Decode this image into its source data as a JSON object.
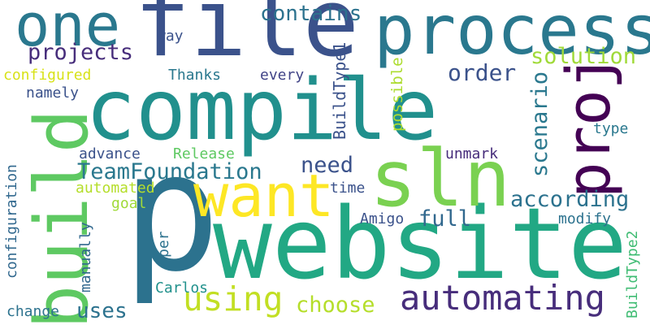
{
  "words": [
    {
      "text": "compile",
      "color": "#21908d",
      "vertical": false
    },
    {
      "text": "website",
      "color": "#22a884",
      "vertical": false
    },
    {
      "text": "p",
      "color": "#2c728e",
      "vertical": false
    },
    {
      "text": "file",
      "color": "#3b528b",
      "vertical": false
    },
    {
      "text": "process",
      "color": "#2a788e",
      "vertical": false
    },
    {
      "text": "build",
      "color": "#5ec962",
      "vertical": true
    },
    {
      "text": "sln",
      "color": "#7ad151",
      "vertical": false
    },
    {
      "text": "want",
      "color": "#fde725",
      "vertical": false
    },
    {
      "text": "proj",
      "color": "#440154",
      "vertical": true
    },
    {
      "text": "one",
      "color": "#2a788e",
      "vertical": false
    },
    {
      "text": "automating",
      "color": "#472d7b",
      "vertical": false
    },
    {
      "text": "using",
      "color": "#c2df23",
      "vertical": false
    },
    {
      "text": "TeamFoundation",
      "color": "#2a788e",
      "vertical": false
    },
    {
      "text": "according",
      "color": "#2c728e",
      "vertical": false
    },
    {
      "text": "contains",
      "color": "#2c728e",
      "vertical": false
    },
    {
      "text": "projects",
      "color": "#472d7b",
      "vertical": false
    },
    {
      "text": "solution",
      "color": "#a0da39",
      "vertical": false
    },
    {
      "text": "scenario",
      "color": "#2a788e",
      "vertical": true
    },
    {
      "text": "order",
      "color": "#3b528b",
      "vertical": false
    },
    {
      "text": "need",
      "color": "#3b528b",
      "vertical": false
    },
    {
      "text": "choose",
      "color": "#b5de2b",
      "vertical": false
    },
    {
      "text": "full",
      "color": "#31688e",
      "vertical": false
    },
    {
      "text": "uses",
      "color": "#2c728e",
      "vertical": false
    },
    {
      "text": "configured",
      "color": "#d8e219",
      "vertical": false
    },
    {
      "text": "namely",
      "color": "#3b528b",
      "vertical": false
    },
    {
      "text": "Thanks",
      "color": "#2a788e",
      "vertical": false
    },
    {
      "text": "every",
      "color": "#414487",
      "vertical": false
    },
    {
      "text": "way",
      "color": "#3b528b",
      "vertical": false
    },
    {
      "text": "BuildType1",
      "color": "#3b528b",
      "vertical": true
    },
    {
      "text": "possible",
      "color": "#addc30",
      "vertical": true
    },
    {
      "text": "advance",
      "color": "#3b528b",
      "vertical": false
    },
    {
      "text": "Release",
      "color": "#5ec962",
      "vertical": false
    },
    {
      "text": "unmark",
      "color": "#472d7b",
      "vertical": false
    },
    {
      "text": "automated",
      "color": "#b5de2b",
      "vertical": false
    },
    {
      "text": "time",
      "color": "#3b528b",
      "vertical": false
    },
    {
      "text": "goal",
      "color": "#a0da39",
      "vertical": false
    },
    {
      "text": "Amigo",
      "color": "#3b528b",
      "vertical": false
    },
    {
      "text": "type",
      "color": "#2a788e",
      "vertical": false
    },
    {
      "text": "modify",
      "color": "#2c728e",
      "vertical": false
    },
    {
      "text": "configuration",
      "color": "#31688e",
      "vertical": true
    },
    {
      "text": "manually",
      "color": "#31688e",
      "vertical": true
    },
    {
      "text": "per",
      "color": "#2c728e",
      "vertical": true
    },
    {
      "text": "Carlos",
      "color": "#21918c",
      "vertical": false
    },
    {
      "text": "change",
      "color": "#2c728e",
      "vertical": false
    },
    {
      "text": "BuildType2",
      "color": "#3fbc73",
      "vertical": true
    }
  ]
}
